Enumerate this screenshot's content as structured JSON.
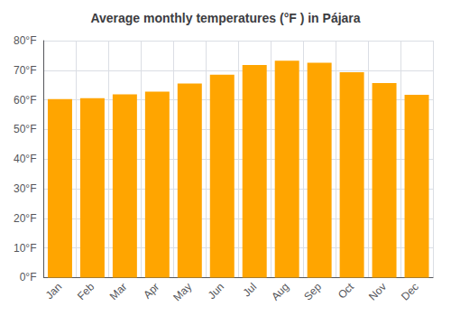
{
  "chart_data": {
    "type": "bar",
    "title": "Average monthly temperatures (°F ) in Pájara",
    "categories": [
      "Jan",
      "Feb",
      "Mar",
      "Apr",
      "May",
      "Jun",
      "Jul",
      "Aug",
      "Sep",
      "Oct",
      "Nov",
      "Dec"
    ],
    "values": [
      60.3,
      60.6,
      61.9,
      62.8,
      65.5,
      68.5,
      71.8,
      73.2,
      72.5,
      69.3,
      65.7,
      61.7
    ],
    "color": "#FFA500",
    "ylim": [
      0,
      80
    ],
    "yticks": [
      {
        "value": 0,
        "label": "0°F"
      },
      {
        "value": 10,
        "label": "10°F"
      },
      {
        "value": 20,
        "label": "20°F"
      },
      {
        "value": 30,
        "label": "30°F"
      },
      {
        "value": 40,
        "label": "40°F"
      },
      {
        "value": 50,
        "label": "50°F"
      },
      {
        "value": 60,
        "label": "60°F"
      },
      {
        "value": 70,
        "label": "70°F"
      },
      {
        "value": 80,
        "label": "80°F"
      }
    ],
    "grid": true
  }
}
